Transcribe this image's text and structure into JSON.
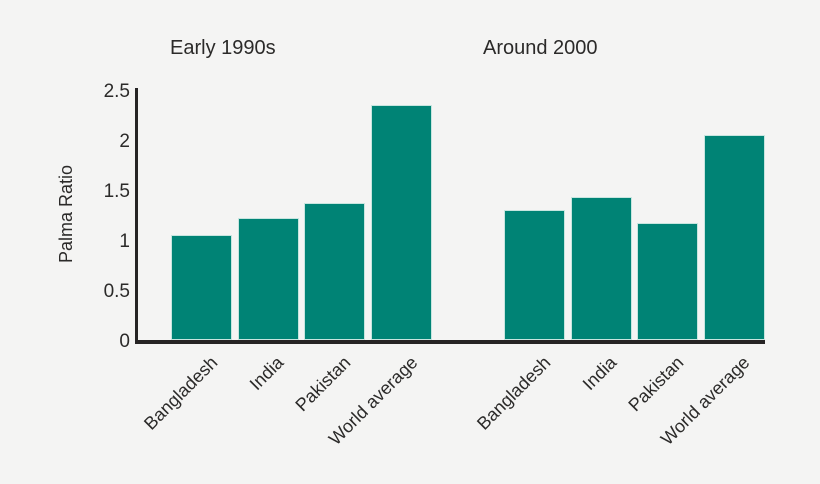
{
  "figure": {
    "background_color": "#f4f4f3",
    "bar_color": "#008375",
    "bar_border_color": "#c7e5df",
    "axis_color": "#262424",
    "text_color": "#2b2a29"
  },
  "chart_data": {
    "type": "bar",
    "title": "",
    "ylabel": "Palma Ratio",
    "xlabel": "",
    "ylim": [
      0,
      2.5
    ],
    "yticks": [
      0,
      0.5,
      1,
      1.5,
      2,
      2.5
    ],
    "grid": false,
    "legend": null,
    "layout": "two side-by-side panels sharing one y-axis and one baseline",
    "categories": [
      "Bangladesh",
      "India",
      "Pakistan",
      "World average"
    ],
    "series": [
      {
        "name": "Early 1990s",
        "values": [
          1.05,
          1.22,
          1.37,
          2.35
        ]
      },
      {
        "name": "Around 2000",
        "values": [
          1.3,
          1.43,
          1.17,
          2.05
        ]
      }
    ]
  }
}
